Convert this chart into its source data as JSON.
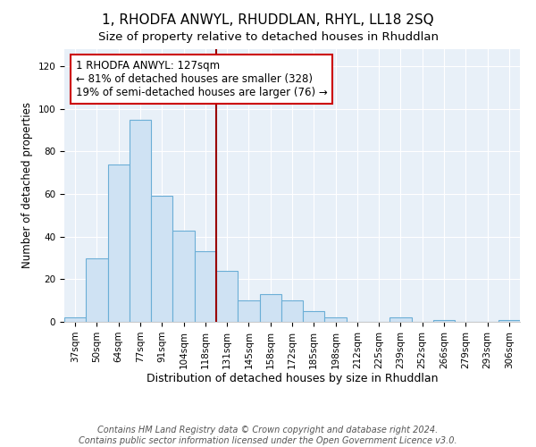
{
  "title": "1, RHODFA ANWYL, RHUDDLAN, RHYL, LL18 2SQ",
  "subtitle": "Size of property relative to detached houses in Rhuddlan",
  "xlabel": "Distribution of detached houses by size in Rhuddlan",
  "ylabel": "Number of detached properties",
  "categories": [
    "37sqm",
    "50sqm",
    "64sqm",
    "77sqm",
    "91sqm",
    "104sqm",
    "118sqm",
    "131sqm",
    "145sqm",
    "158sqm",
    "172sqm",
    "185sqm",
    "198sqm",
    "212sqm",
    "225sqm",
    "239sqm",
    "252sqm",
    "266sqm",
    "279sqm",
    "293sqm",
    "306sqm"
  ],
  "values": [
    2,
    30,
    74,
    95,
    59,
    43,
    33,
    24,
    10,
    13,
    10,
    5,
    2,
    0,
    0,
    2,
    0,
    1,
    0,
    0,
    1
  ],
  "bar_color": "#cfe2f3",
  "bar_edge_color": "#6baed6",
  "vline_color": "#990000",
  "annotation_line1": "1 RHODFA ANWYL: 127sqm",
  "annotation_line2": "← 81% of detached houses are smaller (328)",
  "annotation_line3": "19% of semi-detached houses are larger (76) →",
  "annotation_box_color": "#ffffff",
  "annotation_box_edge": "#cc0000",
  "ylim": [
    0,
    128
  ],
  "yticks": [
    0,
    20,
    40,
    60,
    80,
    100,
    120
  ],
  "vline_index": 7,
  "plot_bg_color": "#e8f0f8",
  "footer_line1": "Contains HM Land Registry data © Crown copyright and database right 2024.",
  "footer_line2": "Contains public sector information licensed under the Open Government Licence v3.0.",
  "title_fontsize": 11,
  "subtitle_fontsize": 9.5,
  "xlabel_fontsize": 9,
  "ylabel_fontsize": 8.5,
  "tick_fontsize": 7.5,
  "annotation_fontsize": 8.5,
  "footer_fontsize": 7
}
